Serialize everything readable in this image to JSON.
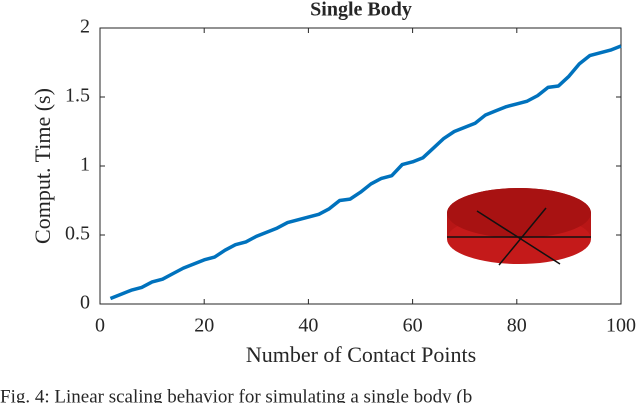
{
  "chart_data": {
    "type": "line",
    "title": "Single Body",
    "xlabel": "Number of Contact Points",
    "ylabel": "Comput. Time (s)",
    "x": [
      2,
      4,
      6,
      8,
      10,
      12,
      14,
      16,
      18,
      20,
      22,
      24,
      26,
      28,
      30,
      32,
      34,
      36,
      38,
      40,
      42,
      44,
      46,
      48,
      50,
      52,
      54,
      56,
      58,
      60,
      62,
      64,
      66,
      68,
      70,
      72,
      74,
      76,
      78,
      80,
      82,
      84,
      86,
      88,
      90,
      92,
      94,
      96,
      98,
      100
    ],
    "series": [
      {
        "name": "Single Body",
        "color": "#0072bd",
        "values": [
          0.04,
          0.07,
          0.1,
          0.12,
          0.16,
          0.18,
          0.22,
          0.26,
          0.29,
          0.32,
          0.34,
          0.39,
          0.43,
          0.45,
          0.49,
          0.52,
          0.55,
          0.59,
          0.61,
          0.63,
          0.65,
          0.69,
          0.75,
          0.76,
          0.81,
          0.87,
          0.91,
          0.93,
          1.01,
          1.03,
          1.06,
          1.13,
          1.2,
          1.25,
          1.28,
          1.31,
          1.37,
          1.4,
          1.43,
          1.45,
          1.47,
          1.51,
          1.57,
          1.58,
          1.65,
          1.74,
          1.8,
          1.82,
          1.84,
          1.87
        ]
      }
    ],
    "xlim": [
      0,
      100
    ],
    "xticks": [
      0,
      20,
      40,
      60,
      80,
      100
    ],
    "ylim": [
      0,
      2
    ],
    "yticks": [
      0,
      0.5,
      1,
      1.5,
      2
    ],
    "grid": false
  },
  "caption": "Fig. 4: Linear scaling behavior for simulating a single body (b"
}
